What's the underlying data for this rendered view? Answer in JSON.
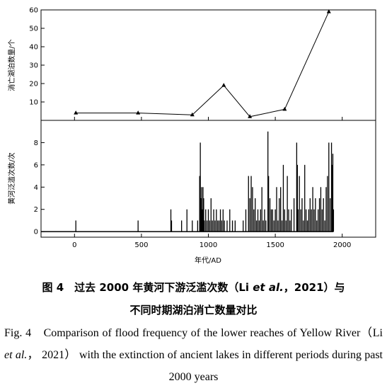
{
  "chart_data": [
    {
      "type": "line",
      "ylabel": "消亡湖泊数量/个",
      "color": "#000000",
      "x": [
        10,
        475,
        880,
        1115,
        1310,
        1570,
        1900
      ],
      "values": [
        4,
        4,
        3,
        19,
        2,
        6,
        59
      ],
      "xlim": [
        -250,
        2250
      ],
      "ylim": [
        0,
        60
      ],
      "yticks": [
        10,
        20,
        30,
        40,
        50,
        60
      ]
    },
    {
      "type": "bar",
      "ylabel": "黄河泛滥次数/次",
      "xlabel": "年代/AD",
      "color": "#000000",
      "x": [
        10,
        475,
        720,
        725,
        800,
        840,
        880,
        920,
        935,
        940,
        945,
        950,
        955,
        960,
        965,
        970,
        980,
        990,
        1000,
        1010,
        1020,
        1030,
        1040,
        1050,
        1060,
        1070,
        1080,
        1090,
        1100,
        1110,
        1120,
        1140,
        1160,
        1180,
        1200,
        1260,
        1280,
        1300,
        1310,
        1320,
        1330,
        1340,
        1350,
        1360,
        1370,
        1380,
        1390,
        1400,
        1410,
        1420,
        1430,
        1445,
        1450,
        1460,
        1470,
        1480,
        1490,
        1500,
        1510,
        1520,
        1530,
        1540,
        1550,
        1560,
        1570,
        1580,
        1590,
        1600,
        1610,
        1620,
        1640,
        1660,
        1665,
        1670,
        1680,
        1690,
        1700,
        1710,
        1720,
        1730,
        1740,
        1750,
        1760,
        1770,
        1780,
        1790,
        1800,
        1810,
        1820,
        1830,
        1840,
        1850,
        1860,
        1870,
        1880,
        1890,
        1900,
        1910,
        1920,
        1925,
        1930,
        1935
      ],
      "values": [
        1,
        1,
        2,
        1,
        1,
        2,
        1,
        1,
        5,
        8,
        3,
        4,
        2,
        4,
        3,
        1,
        2,
        1,
        2,
        1,
        3,
        1,
        2,
        1,
        2,
        1,
        1,
        2,
        1,
        2,
        1,
        1,
        2,
        1,
        1,
        1,
        2,
        5,
        3,
        5,
        4,
        2,
        3,
        1,
        2,
        1,
        2,
        4,
        1,
        2,
        1,
        9,
        5,
        3,
        2,
        2,
        1,
        2,
        4,
        1,
        3,
        4,
        1,
        6,
        2,
        1,
        5,
        2,
        1,
        2,
        3,
        8,
        6,
        2,
        5,
        2,
        3,
        1,
        6,
        2,
        1,
        2,
        3,
        2,
        4,
        2,
        3,
        1,
        2,
        3,
        4,
        2,
        3,
        1,
        4,
        5,
        8,
        3,
        8,
        6,
        7,
        2
      ],
      "xlim": [
        -250,
        2250
      ],
      "xticks": [
        0,
        500,
        1000,
        1500,
        2000
      ],
      "ylim": [
        -0.5,
        10
      ],
      "yticks": [
        0,
        2,
        4,
        6,
        8
      ]
    }
  ],
  "caption": {
    "cn_line1": "图 4　过去 2000 年黄河下游泛滥次数（Li ",
    "cn_italic": "et al.",
    "cn_line1_end": "，2021）与",
    "cn_line2": "不同时期湖泊消亡数量对比",
    "en_before": "Fig. 4　Comparison of flood frequency of the lower reaches of Yellow River（Li ",
    "en_italic": "et al.",
    "en_after": "， 2021） with the extinction of ancient lakes in different periods during past 2000 years"
  }
}
